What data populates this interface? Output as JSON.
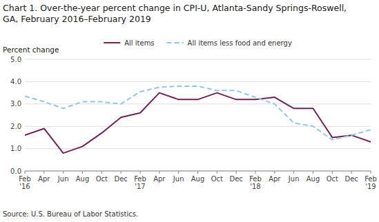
{
  "chart_data": {
    "type": "line",
    "title": "Chart 1. Over-the-year percent change in CPI-U, Atlanta-Sandy Springs-Roswell,\nGA, February 2016–February 2019",
    "ylabel": "Percent change",
    "source": "Source: U.S. Bureau of Labor Statistics.",
    "categories": [
      "Feb\n'16",
      "Apr",
      "Jun",
      "Aug",
      "Oct",
      "Dec",
      "Feb\n'17",
      "Apr",
      "Jun",
      "Aug",
      "Oct",
      "Dec",
      "Feb\n'18",
      "Apr",
      "Jun",
      "Aug",
      "Oct",
      "Dec",
      "Feb\n'19"
    ],
    "series": [
      {
        "name": "All items",
        "color": "#722257",
        "line_style": "solid",
        "values": [
          1.6,
          1.9,
          0.8,
          1.1,
          1.7,
          2.4,
          2.6,
          3.5,
          3.2,
          3.2,
          3.5,
          3.2,
          3.2,
          3.3,
          2.8,
          2.8,
          1.5,
          1.6,
          1.3
        ]
      },
      {
        "name": "All items less food and energy",
        "color": "#92c6e8",
        "line_style": "dashed",
        "values": [
          3.35,
          3.1,
          2.8,
          3.1,
          3.1,
          3.0,
          3.55,
          3.75,
          3.8,
          3.8,
          3.6,
          3.6,
          3.3,
          3.0,
          2.15,
          2.0,
          1.4,
          1.6,
          1.85
        ]
      }
    ],
    "ylim": [
      0.0,
      5.0
    ],
    "yticks": [
      {
        "value": 0.0,
        "label": "0.0"
      },
      {
        "value": 1.0,
        "label": "1.0"
      },
      {
        "value": 2.0,
        "label": "2.0"
      },
      {
        "value": 3.0,
        "label": "3.0"
      },
      {
        "value": 4.0,
        "label": "4.0"
      },
      {
        "value": 5.0,
        "label": "5.0"
      }
    ],
    "grid": true,
    "legend": "top"
  }
}
